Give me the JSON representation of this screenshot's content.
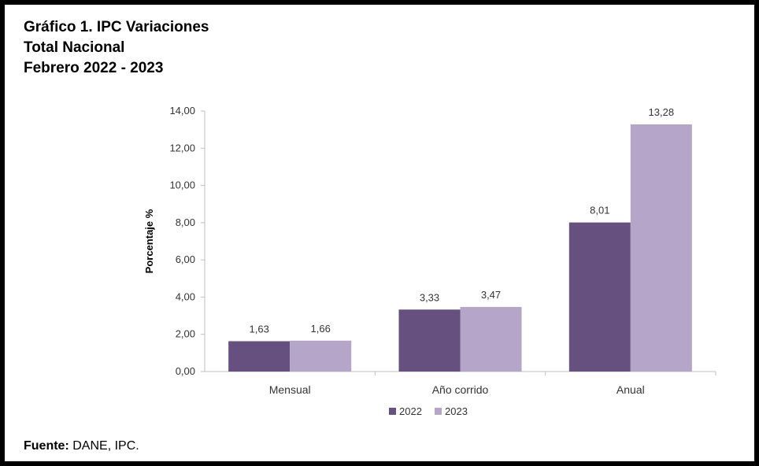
{
  "title": {
    "line1": "Gráfico 1. IPC Variaciones",
    "line2": "Total Nacional",
    "line3": "Febrero 2022 - 2023"
  },
  "source": {
    "label": "Fuente:",
    "text": "DANE, IPC."
  },
  "colors": {
    "series_2022": "#66507f",
    "series_2023": "#b5a5c8",
    "axis": "#bfbfbf"
  },
  "chart_data": {
    "type": "bar",
    "categories": [
      "Mensual",
      "Año corrido",
      "Anual"
    ],
    "series": [
      {
        "name": "2022",
        "values": [
          1.63,
          3.33,
          8.01
        ],
        "labels": [
          "1,63",
          "3,33",
          "8,01"
        ]
      },
      {
        "name": "2023",
        "values": [
          1.66,
          3.47,
          13.28
        ],
        "labels": [
          "1,66",
          "3,47",
          "13,28"
        ]
      }
    ],
    "ylabel": "Porcentaje %",
    "xlabel": "",
    "ylim": [
      0,
      14
    ],
    "yticks": [
      0,
      2,
      4,
      6,
      8,
      10,
      12,
      14
    ],
    "ytick_labels": [
      "0,00",
      "2,00",
      "4,00",
      "6,00",
      "8,00",
      "10,00",
      "12,00",
      "14,00"
    ],
    "grid": false,
    "legend_position": "bottom-center"
  }
}
